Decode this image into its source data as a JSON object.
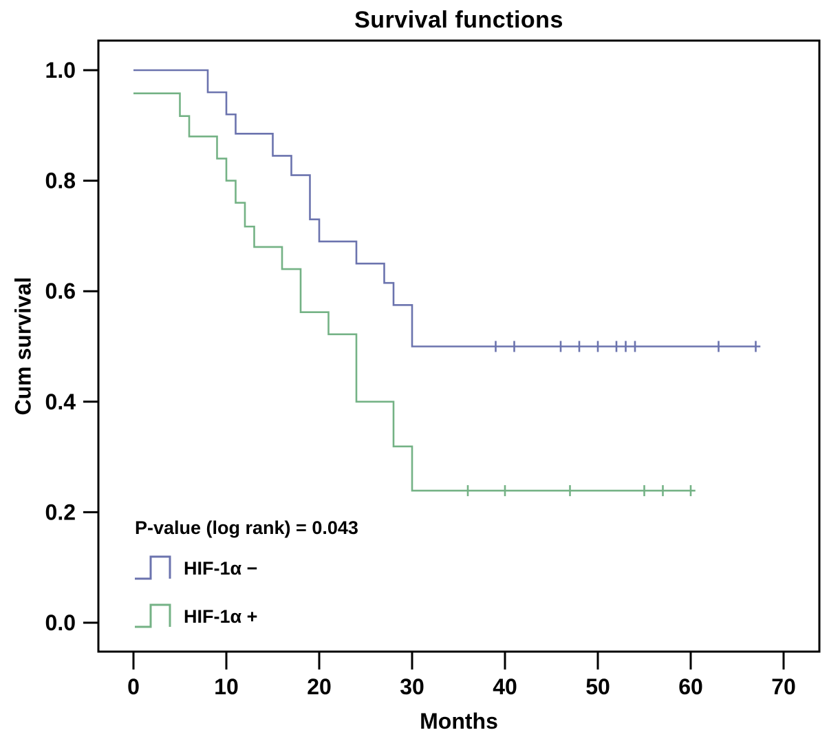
{
  "title": "Survival functions",
  "axes": {
    "x": {
      "label": "Months",
      "ticks": [
        0,
        10,
        20,
        30,
        40,
        50,
        60,
        70
      ]
    },
    "y": {
      "label": "Cum survival",
      "ticks": [
        0.0,
        0.2,
        0.4,
        0.6,
        0.8,
        1.0
      ]
    }
  },
  "annotation": {
    "p_value": "P-value (log rank) = 0.043"
  },
  "legend": {
    "items": [
      {
        "label": "HIF-1α −",
        "color": "#6b73ae"
      },
      {
        "label": "HIF-1α +",
        "color": "#74b285"
      }
    ]
  },
  "chart_data": {
    "type": "line",
    "subtype": "kaplan-meier-step-function",
    "title": "Survival functions",
    "xlabel": "Months",
    "ylabel": "Cum survival",
    "xlim": [
      -3.8,
      73.8
    ],
    "ylim": [
      -0.053,
      1.053
    ],
    "xticks": [
      0,
      10,
      20,
      30,
      40,
      50,
      60,
      70
    ],
    "yticks": [
      0.0,
      0.2,
      0.4,
      0.6,
      0.8,
      1.0
    ],
    "grid": false,
    "legend_position": "inside-lower-left",
    "annotation": "P-value (log rank) = 0.043",
    "series": [
      {
        "name": "HIF-1α −",
        "color": "#6b73ae",
        "start": {
          "x": 0,
          "y": 1.0
        },
        "steps": [
          [
            8,
            0.96
          ],
          [
            10,
            0.92
          ],
          [
            11,
            0.885
          ],
          [
            15,
            0.845
          ],
          [
            17,
            0.81
          ],
          [
            19,
            0.73
          ],
          [
            20,
            0.69
          ],
          [
            24,
            0.65
          ],
          [
            27,
            0.615
          ],
          [
            28,
            0.575
          ],
          [
            30,
            0.5
          ]
        ],
        "end_x": 67.5,
        "censor_marks": [
          [
            39,
            0.5
          ],
          [
            41,
            0.5
          ],
          [
            46,
            0.5
          ],
          [
            48,
            0.5
          ],
          [
            50,
            0.5
          ],
          [
            52,
            0.5
          ],
          [
            53,
            0.5
          ],
          [
            54,
            0.5
          ],
          [
            63,
            0.5
          ],
          [
            67,
            0.5
          ]
        ]
      },
      {
        "name": "HIF-1α +",
        "color": "#74b285",
        "start": {
          "x": 0,
          "y": 0.958
        },
        "steps": [
          [
            5,
            0.917
          ],
          [
            6,
            0.88
          ],
          [
            9,
            0.84
          ],
          [
            10,
            0.8
          ],
          [
            11,
            0.76
          ],
          [
            12,
            0.717
          ],
          [
            13,
            0.68
          ],
          [
            16,
            0.64
          ],
          [
            18,
            0.562
          ],
          [
            21,
            0.522
          ],
          [
            24,
            0.4
          ],
          [
            28,
            0.319
          ],
          [
            30,
            0.239
          ]
        ],
        "end_x": 60.5,
        "censor_marks": [
          [
            36,
            0.239
          ],
          [
            40,
            0.239
          ],
          [
            47,
            0.239
          ],
          [
            55,
            0.239
          ],
          [
            57,
            0.239
          ],
          [
            60,
            0.239
          ]
        ]
      }
    ]
  }
}
